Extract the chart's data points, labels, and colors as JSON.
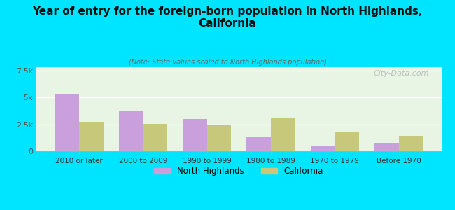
{
  "title": "Year of entry for the foreign-born population in North Highlands,\nCalifornia",
  "subtitle": "(Note: State values scaled to North Highlands population)",
  "categories": [
    "2010 or later",
    "2000 to 2009",
    "1990 to 1999",
    "1980 to 1989",
    "1970 to 1979",
    "Before 1970"
  ],
  "north_highlands": [
    5300,
    3700,
    3000,
    1300,
    450,
    800
  ],
  "california": [
    2700,
    2550,
    2500,
    3100,
    1800,
    1400
  ],
  "nh_color": "#c9a0dc",
  "ca_color": "#c8c87a",
  "background_color": "#00e5ff",
  "title_color": "#1a1a1a",
  "subtitle_color": "#555555",
  "yticks": [
    0,
    2500,
    5000,
    7500
  ],
  "ytick_labels": [
    "0",
    "2.5k",
    "5k",
    "7.5k"
  ],
  "ylim": [
    0,
    7800
  ],
  "watermark": "City-Data.com",
  "legend_nh": "North Highlands",
  "legend_ca": "California"
}
